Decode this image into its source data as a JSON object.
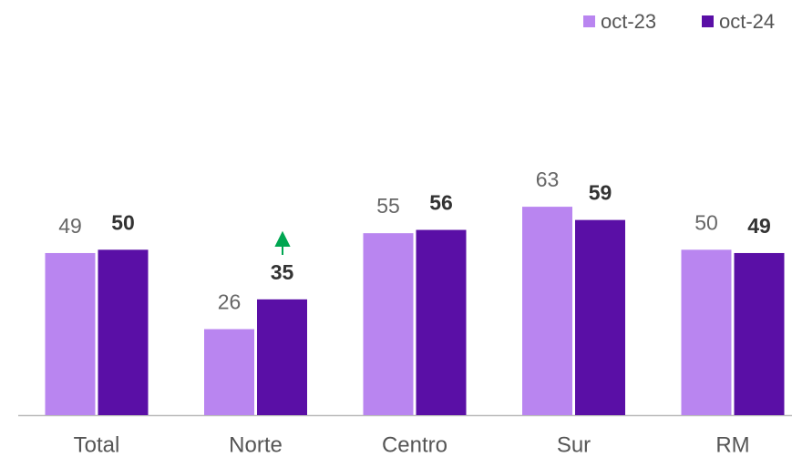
{
  "chart_data": {
    "type": "bar",
    "categories": [
      "Total",
      "Norte",
      "Centro",
      "Sur",
      "RM"
    ],
    "series": [
      {
        "name": "oct-23",
        "color": "#b985f0",
        "values": [
          49,
          26,
          55,
          63,
          50
        ]
      },
      {
        "name": "oct-24",
        "color": "#5a0fa6",
        "values": [
          50,
          35,
          56,
          59,
          49
        ]
      }
    ],
    "ylim": [
      0,
      120
    ],
    "legend": "top-right"
  }
}
